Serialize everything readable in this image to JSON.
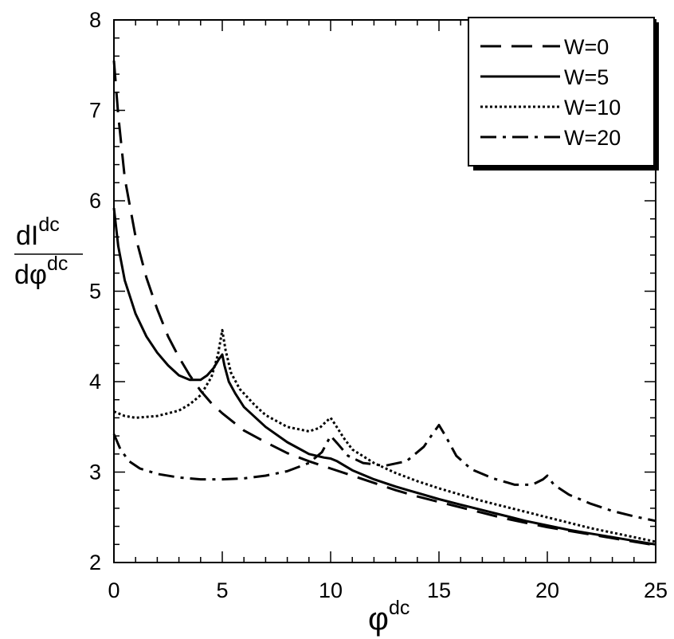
{
  "chart_data": {
    "type": "line",
    "title": "",
    "xlabel": {
      "main": "φ",
      "sup": "dc"
    },
    "ylabel": {
      "num_main": "dI",
      "num_sup": "dc",
      "den_main": "dφ",
      "den_sup": "dc"
    },
    "xlim": [
      0,
      25
    ],
    "ylim": [
      2,
      8
    ],
    "x_ticks": [
      "0",
      "5",
      "10",
      "15",
      "20",
      "25"
    ],
    "y_ticks": [
      "2",
      "3",
      "4",
      "5",
      "6",
      "7",
      "8"
    ],
    "grid": false,
    "legend_position": "top-right",
    "series": [
      {
        "name": "W=0",
        "dash": "dashed",
        "points": [
          [
            0,
            7.55
          ],
          [
            0.2,
            6.95
          ],
          [
            0.5,
            6.25
          ],
          [
            1,
            5.6
          ],
          [
            1.5,
            5.15
          ],
          [
            2,
            4.8
          ],
          [
            2.5,
            4.5
          ],
          [
            3,
            4.27
          ],
          [
            3.5,
            4.07
          ],
          [
            4,
            3.9
          ],
          [
            4.5,
            3.76
          ],
          [
            5,
            3.65
          ],
          [
            6,
            3.46
          ],
          [
            7,
            3.33
          ],
          [
            8,
            3.21
          ],
          [
            9,
            3.12
          ],
          [
            10,
            3.04
          ],
          [
            11,
            2.96
          ],
          [
            12,
            2.88
          ],
          [
            13,
            2.8
          ],
          [
            14,
            2.73
          ],
          [
            15,
            2.67
          ],
          [
            16,
            2.61
          ],
          [
            17,
            2.55
          ],
          [
            18,
            2.49
          ],
          [
            19,
            2.44
          ],
          [
            20,
            2.39
          ],
          [
            21,
            2.35
          ],
          [
            22,
            2.31
          ],
          [
            23,
            2.27
          ],
          [
            24,
            2.23
          ],
          [
            25,
            2.19
          ]
        ]
      },
      {
        "name": "W=5",
        "dash": "solid",
        "points": [
          [
            0,
            5.92
          ],
          [
            0.2,
            5.5
          ],
          [
            0.5,
            5.12
          ],
          [
            1,
            4.75
          ],
          [
            1.5,
            4.5
          ],
          [
            2,
            4.32
          ],
          [
            2.5,
            4.18
          ],
          [
            3,
            4.07
          ],
          [
            3.5,
            4.02
          ],
          [
            4,
            4.02
          ],
          [
            4.3,
            4.07
          ],
          [
            4.6,
            4.15
          ],
          [
            4.85,
            4.25
          ],
          [
            5,
            4.3
          ],
          [
            5.1,
            4.18
          ],
          [
            5.3,
            4.0
          ],
          [
            5.6,
            3.87
          ],
          [
            6,
            3.72
          ],
          [
            7,
            3.5
          ],
          [
            8,
            3.33
          ],
          [
            9,
            3.2
          ],
          [
            9.7,
            3.16
          ],
          [
            10,
            3.15
          ],
          [
            10.3,
            3.12
          ],
          [
            11,
            3.02
          ],
          [
            12,
            2.92
          ],
          [
            13,
            2.84
          ],
          [
            14,
            2.77
          ],
          [
            15,
            2.7
          ],
          [
            16,
            2.64
          ],
          [
            17,
            2.58
          ],
          [
            18,
            2.52
          ],
          [
            19,
            2.46
          ],
          [
            20,
            2.41
          ],
          [
            21,
            2.36
          ],
          [
            22,
            2.32
          ],
          [
            23,
            2.28
          ],
          [
            24,
            2.24
          ],
          [
            25,
            2.2
          ]
        ]
      },
      {
        "name": "W=10",
        "dash": "dotted",
        "points": [
          [
            0,
            3.67
          ],
          [
            0.5,
            3.62
          ],
          [
            1,
            3.6
          ],
          [
            2,
            3.62
          ],
          [
            3,
            3.68
          ],
          [
            3.5,
            3.75
          ],
          [
            4,
            3.85
          ],
          [
            4.5,
            4.05
          ],
          [
            4.8,
            4.3
          ],
          [
            5,
            4.57
          ],
          [
            5.15,
            4.35
          ],
          [
            5.4,
            4.1
          ],
          [
            5.8,
            3.92
          ],
          [
            6.5,
            3.74
          ],
          [
            7,
            3.63
          ],
          [
            8,
            3.5
          ],
          [
            9,
            3.45
          ],
          [
            9.5,
            3.49
          ],
          [
            9.8,
            3.56
          ],
          [
            10,
            3.6
          ],
          [
            10.2,
            3.53
          ],
          [
            10.6,
            3.38
          ],
          [
            11,
            3.25
          ],
          [
            12,
            3.1
          ],
          [
            13,
            2.99
          ],
          [
            14,
            2.9
          ],
          [
            15,
            2.82
          ],
          [
            16,
            2.75
          ],
          [
            17,
            2.68
          ],
          [
            18,
            2.62
          ],
          [
            19,
            2.56
          ],
          [
            20,
            2.5
          ],
          [
            21,
            2.44
          ],
          [
            22,
            2.38
          ],
          [
            23,
            2.33
          ],
          [
            24,
            2.28
          ],
          [
            25,
            2.23
          ]
        ]
      },
      {
        "name": "W=20",
        "dash": "dashdot",
        "points": [
          [
            0,
            3.42
          ],
          [
            0.3,
            3.25
          ],
          [
            0.7,
            3.12
          ],
          [
            1.2,
            3.04
          ],
          [
            2,
            2.98
          ],
          [
            3,
            2.94
          ],
          [
            4,
            2.92
          ],
          [
            5,
            2.92
          ],
          [
            6,
            2.93
          ],
          [
            7,
            2.96
          ],
          [
            8,
            3.01
          ],
          [
            9,
            3.1
          ],
          [
            9.6,
            3.22
          ],
          [
            10,
            3.4
          ],
          [
            10.3,
            3.32
          ],
          [
            10.8,
            3.18
          ],
          [
            11.5,
            3.1
          ],
          [
            12.5,
            3.07
          ],
          [
            13.5,
            3.12
          ],
          [
            14.3,
            3.28
          ],
          [
            14.7,
            3.42
          ],
          [
            15,
            3.52
          ],
          [
            15.3,
            3.4
          ],
          [
            15.8,
            3.18
          ],
          [
            16.5,
            3.03
          ],
          [
            17.5,
            2.93
          ],
          [
            18.5,
            2.86
          ],
          [
            19.3,
            2.86
          ],
          [
            19.8,
            2.92
          ],
          [
            20,
            2.96
          ],
          [
            20.3,
            2.86
          ],
          [
            21,
            2.75
          ],
          [
            22,
            2.65
          ],
          [
            23,
            2.57
          ],
          [
            24,
            2.51
          ],
          [
            25,
            2.46
          ]
        ]
      }
    ]
  }
}
